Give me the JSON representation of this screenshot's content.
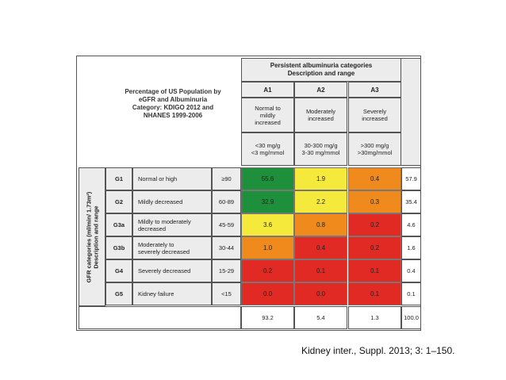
{
  "title_lines": [
    "Percentage of US Population by",
    "eGFR and Albuminuria",
    "Category: KDIGO 2012 and",
    "NHANES 1999-2006"
  ],
  "albuminuria_header_lines": [
    "Persistent albuminuria categories",
    "Description and range"
  ],
  "side_label_lines": [
    "GFR categories (ml/min/ 1.73m²)",
    "Description and range"
  ],
  "albuminuria": [
    {
      "code": "A1",
      "desc_lines": [
        "Normal to",
        "mildly",
        "increased"
      ],
      "range_lines": [
        "<30 mg/g",
        "<3 mg/mmol"
      ]
    },
    {
      "code": "A2",
      "desc_lines": [
        "Moderately",
        "increased"
      ],
      "range_lines": [
        "30-300 mg/g",
        "3-30 mg/mmol"
      ]
    },
    {
      "code": "A3",
      "desc_lines": [
        "Severely",
        "increased"
      ],
      "range_lines": [
        ">300 mg/g",
        ">30mg/mmol"
      ]
    }
  ],
  "colors": {
    "green": "#1e8f3a",
    "yellow": "#f5ea3c",
    "orange": "#f08a1c",
    "red": "#e02a23"
  },
  "gfr_rows": [
    {
      "code": "G1",
      "desc_lines": [
        "Normal or high"
      ],
      "range": "≥90",
      "values": [
        "55.6",
        "1.9",
        "0.4"
      ],
      "colors": [
        "green",
        "yellow",
        "orange"
      ],
      "total": "57.9"
    },
    {
      "code": "G2",
      "desc_lines": [
        "Mildly decreased"
      ],
      "range": "60-89",
      "values": [
        "32.9",
        "2.2",
        "0.3"
      ],
      "colors": [
        "green",
        "yellow",
        "orange"
      ],
      "total": "35.4"
    },
    {
      "code": "G3a",
      "desc_lines": [
        "Mildly to moderately",
        "decreased"
      ],
      "range": "45-59",
      "values": [
        "3.6",
        "0.8",
        "0.2"
      ],
      "colors": [
        "yellow",
        "orange",
        "red"
      ],
      "total": "4.6"
    },
    {
      "code": "G3b",
      "desc_lines": [
        "Moderately to",
        "severely decreased"
      ],
      "range": "30-44",
      "values": [
        "1.0",
        "0.4",
        "0.2"
      ],
      "colors": [
        "orange",
        "red",
        "red"
      ],
      "total": "1.6"
    },
    {
      "code": "G4",
      "desc_lines": [
        "Severely decreased"
      ],
      "range": "15-29",
      "values": [
        "0.2",
        "0.1",
        "0.1"
      ],
      "colors": [
        "red",
        "red",
        "red"
      ],
      "total": "0.4"
    },
    {
      "code": "G5",
      "desc_lines": [
        "Kidney failure"
      ],
      "range": "<15",
      "values": [
        "0.0",
        "0.0",
        "0.1"
      ],
      "colors": [
        "red",
        "red",
        "red"
      ],
      "total": "0.1"
    }
  ],
  "column_totals": [
    "93.2",
    "5.4",
    "1.3"
  ],
  "grand_total": "100.0",
  "citation": "Kidney inter., Suppl. 2013; 3: 1–150."
}
